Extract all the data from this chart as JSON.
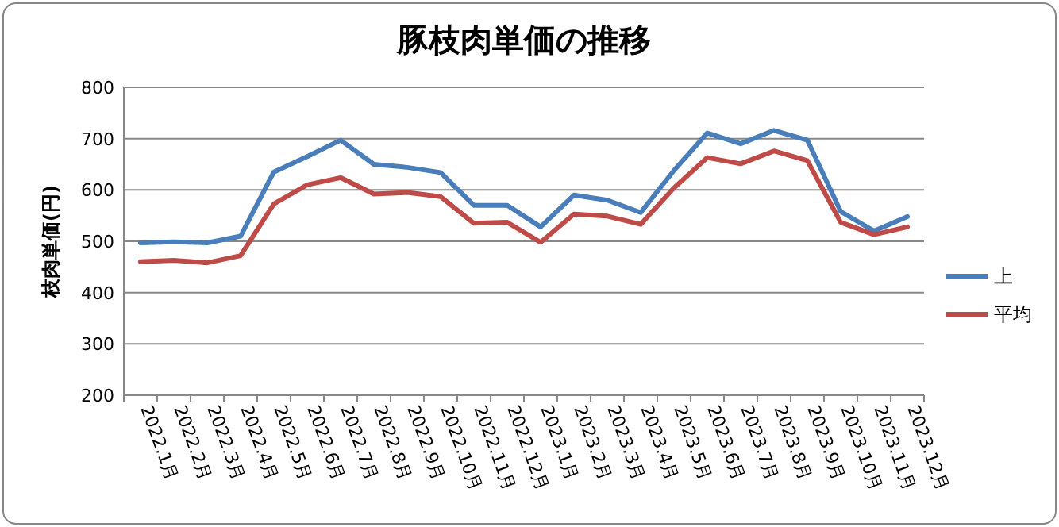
{
  "chart_data": {
    "type": "line",
    "title": "豚枝肉単価の推移",
    "ylabel": "枝肉単価(円)",
    "categories": [
      "2022.1月",
      "2022.2月",
      "2022.3月",
      "2022.4月",
      "2022.5月",
      "2022.6月",
      "2022.7月",
      "2022.8月",
      "2022.9月",
      "2022.10月",
      "2022.11月",
      "2022.12月",
      "2023.1月",
      "2023.2月",
      "2023.3月",
      "2023.4月",
      "2023.5月",
      "2023.6月",
      "2023.7月",
      "2023.8月",
      "2023.9月",
      "2023.10月",
      "2023.11月",
      "2023.12月"
    ],
    "series": [
      {
        "name": "上",
        "color": "#4a7ebb",
        "values": [
          497,
          499,
          497,
          510,
          635,
          665,
          697,
          650,
          644,
          634,
          570,
          570,
          528,
          590,
          580,
          556,
          638,
          711,
          690,
          716,
          697,
          558,
          520,
          548
        ]
      },
      {
        "name": "平均",
        "color": "#be4b48",
        "values": [
          460,
          463,
          458,
          472,
          573,
          610,
          624,
          592,
          595,
          587,
          535,
          537,
          498,
          553,
          549,
          533,
          604,
          663,
          651,
          676,
          657,
          537,
          513,
          528
        ]
      }
    ],
    "ylim": [
      200,
      800
    ],
    "yticks": [
      200,
      300,
      400,
      500,
      600,
      700,
      800
    ],
    "grid": "y",
    "legend": "right",
    "marker": "none",
    "line_style": "solid"
  }
}
